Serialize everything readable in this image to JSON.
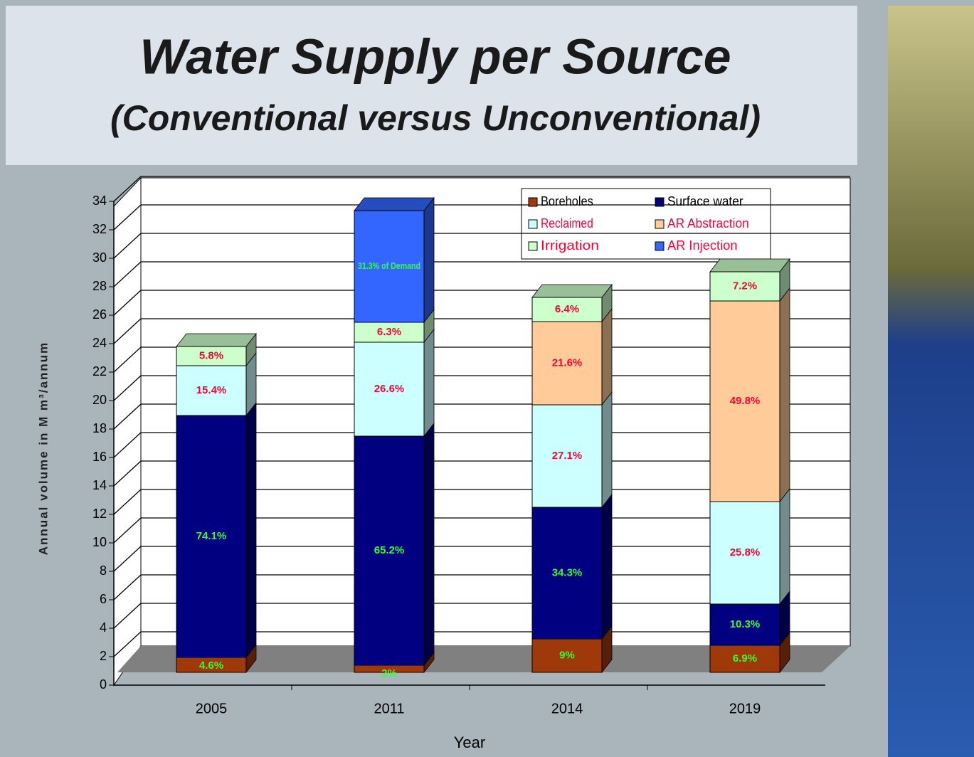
{
  "chart_data": {
    "type": "bar3d_stacked",
    "title": "Water Supply per Source",
    "subtitle": "(Conventional versus Unconventional)",
    "y_label": "Annual volume in M m³/annum",
    "x_label": "Year",
    "categories": [
      "2005",
      "2011",
      "2014",
      "2019"
    ],
    "ylim": [
      0,
      34
    ],
    "yticks": [
      0,
      2,
      4,
      6,
      8,
      10,
      12,
      14,
      16,
      18,
      20,
      22,
      24,
      26,
      28,
      30,
      32,
      34
    ],
    "grid": true,
    "series": [
      {
        "name": "Boreholes",
        "color": "#a0390a",
        "label_color": "#33ff33",
        "values": [
          1.05,
          0.5,
          2.35,
          1.9
        ],
        "value_labels": [
          "4.6%",
          "2%",
          "9%",
          "6.9%"
        ]
      },
      {
        "name": "Surface water",
        "color": "#000080",
        "label_color": "#33ff33",
        "values": [
          17.0,
          16.1,
          9.25,
          2.9
        ],
        "value_labels": [
          "74.1%",
          "65.2%",
          "34.3%",
          "10.3%"
        ]
      },
      {
        "name": "Reclaimed",
        "color": "#ccffff",
        "label_color": "#ff0033",
        "values": [
          3.5,
          6.6,
          7.2,
          7.2
        ],
        "value_labels": [
          "15.4%",
          "26.6%",
          "27.1%",
          "25.8%"
        ]
      },
      {
        "name": "AR Abstraction",
        "color": "#ffcc99",
        "label_color": "#ff0033",
        "values": [
          null,
          null,
          5.85,
          14.1
        ],
        "value_labels": [
          null,
          null,
          "21.6%",
          "49.8%"
        ]
      },
      {
        "name": "Irrigation",
        "color": "#ccffcc",
        "label_color": "#ff0033",
        "values": [
          1.35,
          1.4,
          1.7,
          2.05
        ],
        "value_labels": [
          "5.8%",
          "6.3%",
          "6.4%",
          "7.2%"
        ]
      },
      {
        "name": "AR Injection",
        "color": "#3366ff",
        "label_color": "#33ff33",
        "values": [
          null,
          7.85,
          null,
          null
        ],
        "value_labels": [
          null,
          "31.3% of Demand",
          null,
          null
        ]
      }
    ]
  }
}
